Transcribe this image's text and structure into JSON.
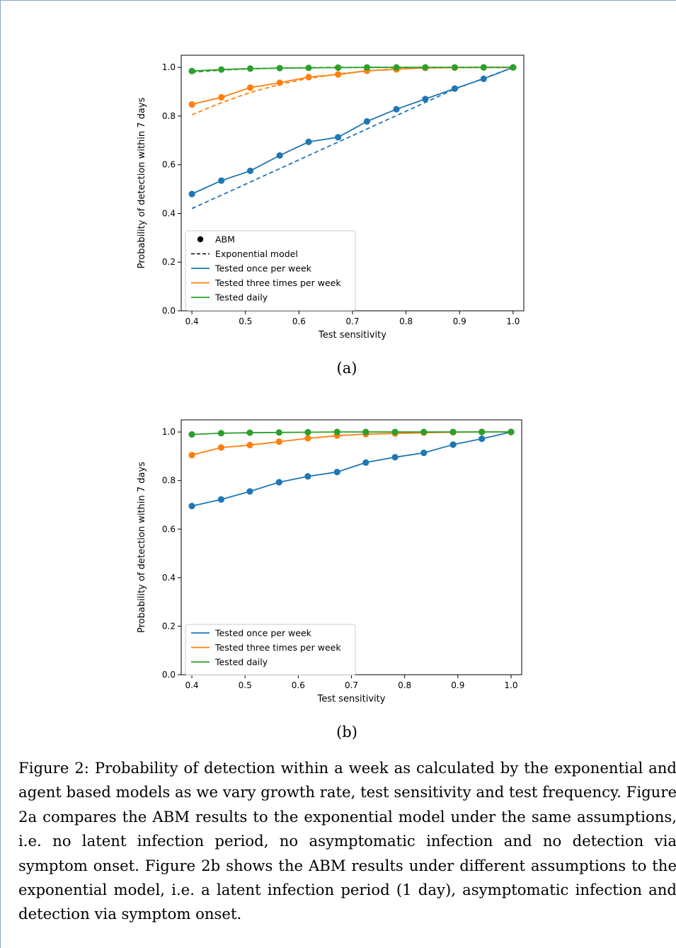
{
  "colors": {
    "once": "#1f77b4",
    "three": "#ff7f0e",
    "daily": "#2ca02c"
  },
  "chart_data": [
    {
      "type": "line",
      "xlabel": "Test sensitivity",
      "ylabel": "Probability of detection within 7 days",
      "xlim": [
        0.38,
        1.02
      ],
      "ylim": [
        0.0,
        1.05
      ],
      "xticks": [
        "0.4",
        "0.5",
        "0.6",
        "0.7",
        "0.8",
        "0.9",
        "1.0"
      ],
      "yticks": [
        "0.0",
        "0.2",
        "0.4",
        "0.6",
        "0.8",
        "1.0"
      ],
      "legend_placement": "lower-left",
      "legend": [
        "ABM",
        "Exponential model",
        "Tested once per week",
        "Tested three times per week",
        "Tested daily"
      ],
      "x": [
        0.4,
        0.455,
        0.509,
        0.564,
        0.618,
        0.673,
        0.727,
        0.782,
        0.836,
        0.891,
        0.945,
        1.0
      ],
      "series": [
        {
          "name": "Tested once per week",
          "style": "abm",
          "color": "#1f77b4",
          "values": [
            0.48,
            0.535,
            0.575,
            0.638,
            0.694,
            0.713,
            0.778,
            0.828,
            0.87,
            0.913,
            0.953,
            1.0
          ]
        },
        {
          "name": "Tested three times per week",
          "style": "abm",
          "color": "#ff7f0e",
          "values": [
            0.848,
            0.877,
            0.917,
            0.937,
            0.96,
            0.971,
            0.986,
            0.992,
            0.998,
            0.999,
            1.0,
            1.0
          ]
        },
        {
          "name": "Tested daily",
          "style": "abm",
          "color": "#2ca02c",
          "values": [
            0.985,
            0.991,
            0.995,
            0.997,
            0.998,
            0.999,
            1.0,
            1.0,
            1.0,
            1.0,
            1.0,
            1.0
          ]
        },
        {
          "name": "Tested once per week",
          "style": "exp",
          "color": "#1f77b4",
          "values": [
            0.42,
            0.475,
            0.529,
            0.584,
            0.638,
            0.693,
            0.747,
            0.802,
            0.856,
            0.911,
            0.955,
            1.0
          ]
        },
        {
          "name": "Tested three times per week",
          "style": "exp",
          "color": "#ff7f0e",
          "values": [
            0.805,
            0.855,
            0.897,
            0.93,
            0.955,
            0.973,
            0.986,
            0.994,
            0.998,
            0.999,
            1.0,
            1.0
          ]
        },
        {
          "name": "Tested daily",
          "style": "exp",
          "color": "#2ca02c",
          "values": [
            0.98,
            0.989,
            0.994,
            0.997,
            0.999,
            1.0,
            1.0,
            1.0,
            1.0,
            1.0,
            1.0,
            1.0
          ]
        }
      ]
    },
    {
      "type": "line",
      "xlabel": "Test sensitivity",
      "ylabel": "Probability of detection within 7 days",
      "xlim": [
        0.38,
        1.02
      ],
      "ylim": [
        0.0,
        1.05
      ],
      "xticks": [
        "0.4",
        "0.5",
        "0.6",
        "0.7",
        "0.8",
        "0.9",
        "1.0"
      ],
      "yticks": [
        "0.0",
        "0.2",
        "0.4",
        "0.6",
        "0.8",
        "1.0"
      ],
      "legend_placement": "lower-left",
      "legend": [
        "Tested once per week",
        "Tested three times per week",
        "Tested daily"
      ],
      "x": [
        0.4,
        0.455,
        0.509,
        0.564,
        0.618,
        0.673,
        0.727,
        0.782,
        0.836,
        0.891,
        0.945,
        1.0
      ],
      "series": [
        {
          "name": "Tested once per week",
          "style": "abm",
          "color": "#1f77b4",
          "values": [
            0.695,
            0.722,
            0.755,
            0.793,
            0.817,
            0.835,
            0.874,
            0.896,
            0.914,
            0.948,
            0.972,
            1.0
          ]
        },
        {
          "name": "Tested three times per week",
          "style": "abm",
          "color": "#ff7f0e",
          "values": [
            0.905,
            0.936,
            0.946,
            0.96,
            0.974,
            0.985,
            0.991,
            0.994,
            0.997,
            0.999,
            1.0,
            1.0
          ]
        },
        {
          "name": "Tested daily",
          "style": "abm",
          "color": "#2ca02c",
          "values": [
            0.99,
            0.995,
            0.997,
            0.998,
            0.999,
            1.0,
            1.0,
            1.0,
            1.0,
            1.0,
            1.0,
            1.0
          ]
        }
      ]
    }
  ],
  "sublabels": {
    "a": "(a)",
    "b": "(b)"
  },
  "caption": "Figure 2: Probability of detection within a week as calculated by the exponential and agent based models as we vary growth rate, test sensitivity and test frequency. Figure 2a compares the ABM results to the exponential model under the same assumptions, i.e. no latent infection period, no asymptomatic infection and no detection via symptom onset. Figure 2b shows the ABM results under different assumptions to the exponential model, i.e. a latent infection period (1 day), asymptomatic infection and detection via symptom onset."
}
